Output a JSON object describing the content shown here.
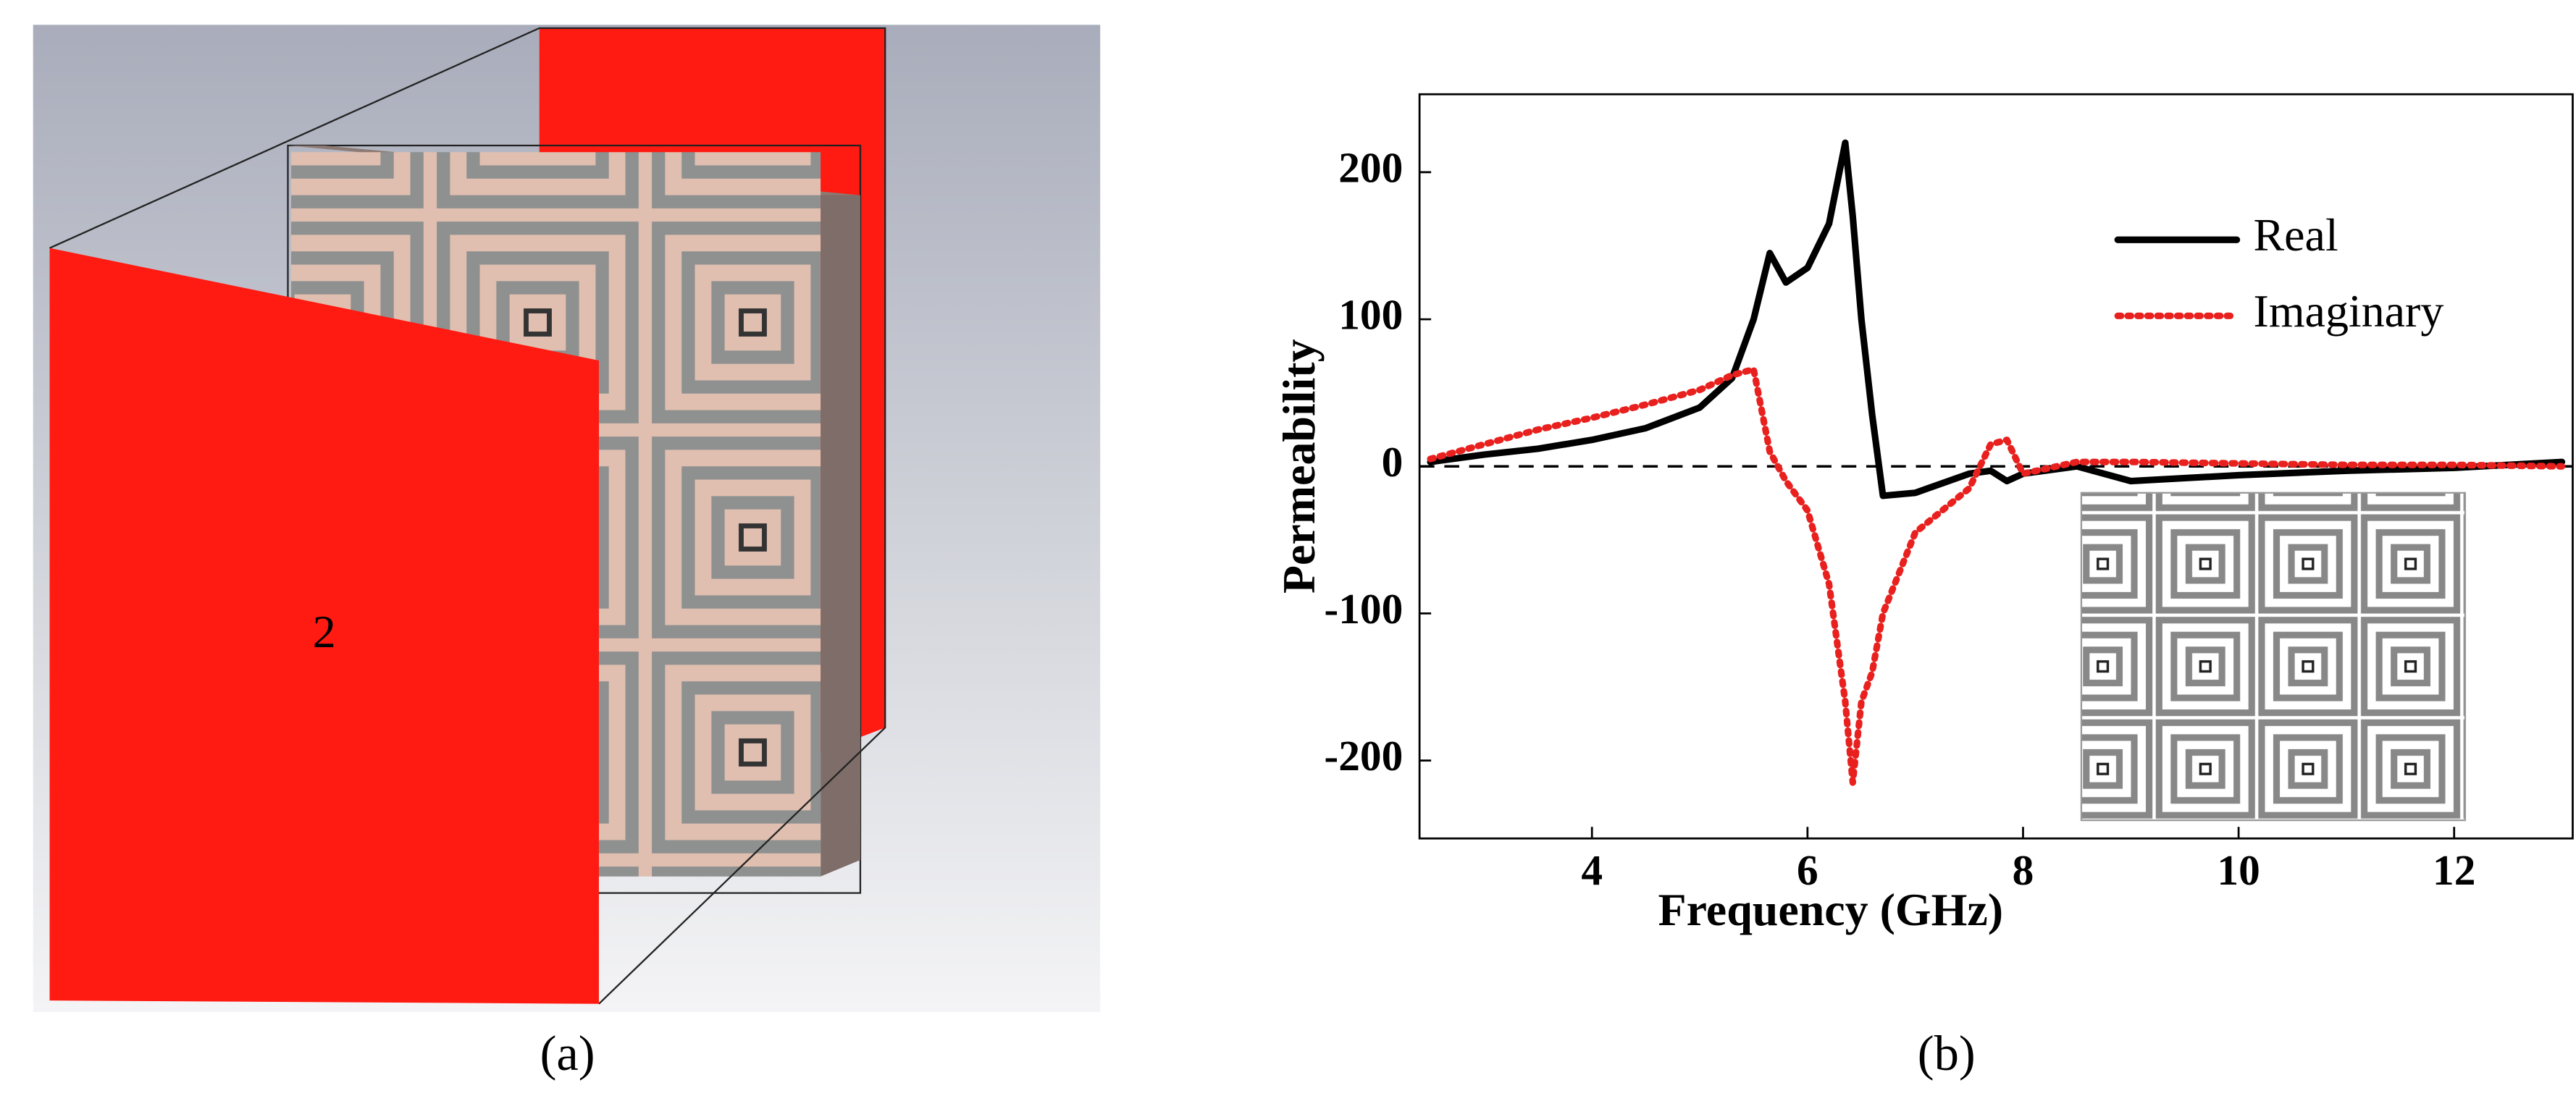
{
  "panel_a": {
    "port_label": "2",
    "caption": "(a)"
  },
  "chart_data": {
    "type": "line",
    "caption": "(b)",
    "x_label": "Frequency (GHz)",
    "y_label": "Permeability",
    "x": [
      2.5,
      3,
      3.5,
      4,
      4.5,
      5,
      5.3,
      5.5,
      5.65,
      5.8,
      6,
      6.2,
      6.35,
      6.42,
      6.5,
      6.6,
      6.7,
      7,
      7.5,
      7.7,
      7.85,
      8,
      8.5,
      9,
      10,
      11,
      12,
      13
    ],
    "series": [
      {
        "name": "Real",
        "color": "#000000",
        "dash": "solid",
        "values": [
          3,
          8,
          12,
          18,
          26,
          40,
          60,
          100,
          145,
          125,
          135,
          165,
          220,
          170,
          100,
          35,
          -20,
          -18,
          -5,
          -3,
          -10,
          -5,
          0,
          -10,
          -6,
          -3,
          -1,
          3
        ]
      },
      {
        "name": "Imaginary",
        "color": "#e8201e",
        "dash": "dotted",
        "values": [
          5,
          15,
          25,
          33,
          42,
          52,
          62,
          66,
          10,
          -10,
          -30,
          -80,
          -160,
          -215,
          -160,
          -140,
          -100,
          -45,
          -15,
          15,
          18,
          -5,
          3,
          3,
          2,
          1,
          1,
          0
        ]
      }
    ],
    "xlim": [
      2.4,
      13.1
    ],
    "ylim": [
      -253,
      253
    ],
    "xticks": [
      4,
      6,
      8,
      10,
      12
    ],
    "yticks": [
      -200,
      -100,
      0,
      100,
      200
    ],
    "zero_line": true,
    "legend": "upper-right"
  }
}
